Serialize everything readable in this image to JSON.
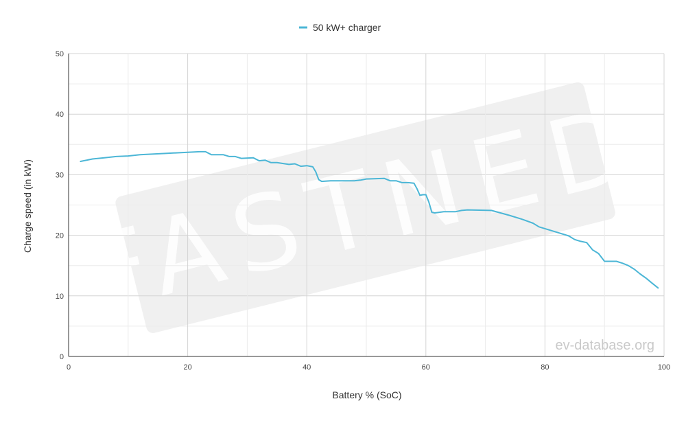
{
  "chart_data": {
    "type": "line",
    "xlabel": "Battery % (SoC)",
    "ylabel": "Charge speed (in kW)",
    "xlim": [
      0,
      100
    ],
    "ylim": [
      0,
      50
    ],
    "x_ticks": [
      0,
      20,
      40,
      60,
      80,
      100
    ],
    "y_ticks": [
      0,
      10,
      20,
      30,
      40,
      50
    ],
    "grid": true,
    "legend_position": "top-center",
    "series": [
      {
        "name": "50 kW+ charger",
        "color": "#4bb6d6",
        "points": [
          [
            2,
            32.2
          ],
          [
            4,
            32.6
          ],
          [
            6,
            32.8
          ],
          [
            8,
            33.0
          ],
          [
            10,
            33.1
          ],
          [
            12,
            33.3
          ],
          [
            14,
            33.4
          ],
          [
            16,
            33.5
          ],
          [
            18,
            33.6
          ],
          [
            20,
            33.7
          ],
          [
            22,
            33.8
          ],
          [
            23,
            33.8
          ],
          [
            24,
            33.3
          ],
          [
            26,
            33.3
          ],
          [
            27,
            33.0
          ],
          [
            28,
            33.0
          ],
          [
            29,
            32.7
          ],
          [
            31,
            32.8
          ],
          [
            32,
            32.3
          ],
          [
            33,
            32.4
          ],
          [
            34,
            32.0
          ],
          [
            35,
            32.0
          ],
          [
            37,
            31.7
          ],
          [
            38,
            31.8
          ],
          [
            39,
            31.4
          ],
          [
            40,
            31.5
          ],
          [
            41,
            31.3
          ],
          [
            41.5,
            30.5
          ],
          [
            42,
            29.2
          ],
          [
            42.5,
            28.9
          ],
          [
            44,
            29.0
          ],
          [
            46,
            29.0
          ],
          [
            48,
            29.0
          ],
          [
            49,
            29.1
          ],
          [
            50,
            29.3
          ],
          [
            53,
            29.4
          ],
          [
            54,
            29.0
          ],
          [
            55,
            29.0
          ],
          [
            56,
            28.7
          ],
          [
            57,
            28.7
          ],
          [
            58,
            28.6
          ],
          [
            58.5,
            27.7
          ],
          [
            59,
            26.6
          ],
          [
            59.5,
            26.7
          ],
          [
            60,
            26.7
          ],
          [
            60.5,
            25.5
          ],
          [
            61,
            23.8
          ],
          [
            61.5,
            23.7
          ],
          [
            63,
            23.9
          ],
          [
            65,
            23.9
          ],
          [
            66,
            24.1
          ],
          [
            67,
            24.2
          ],
          [
            71,
            24.1
          ],
          [
            74,
            23.3
          ],
          [
            76,
            22.7
          ],
          [
            78,
            22.0
          ],
          [
            79,
            21.4
          ],
          [
            80,
            21.1
          ],
          [
            82,
            20.5
          ],
          [
            84,
            19.9
          ],
          [
            85,
            19.3
          ],
          [
            86,
            19.0
          ],
          [
            87,
            18.8
          ],
          [
            88,
            17.6
          ],
          [
            89,
            17.0
          ],
          [
            90,
            15.7
          ],
          [
            91,
            15.7
          ],
          [
            92,
            15.7
          ],
          [
            93,
            15.4
          ],
          [
            94,
            15.0
          ],
          [
            95,
            14.4
          ],
          [
            96,
            13.6
          ],
          [
            97,
            12.9
          ],
          [
            98,
            12.1
          ],
          [
            99,
            11.3
          ]
        ]
      }
    ]
  },
  "watermark": {
    "fastned_text": "FASTNED",
    "site_text": "ev-database.org"
  }
}
